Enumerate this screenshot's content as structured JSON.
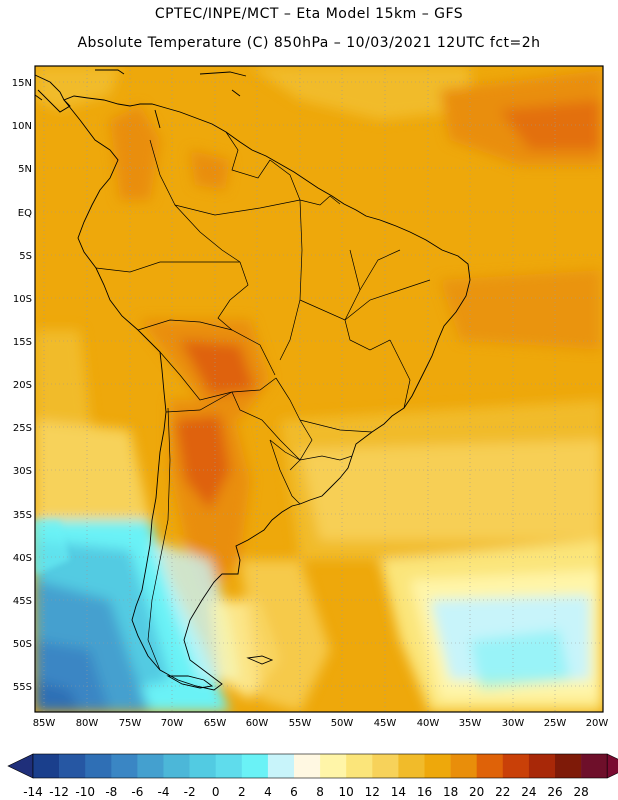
{
  "header": {
    "line1": "CPTEC/INPE/MCT –   Eta Model 15km – GFS",
    "line2": "Absolute Temperature (C) 850hPa – 10/03/2021 12UTC fct=2h"
  },
  "map": {
    "lat_labels": [
      "15N",
      "10N",
      "5N",
      "EQ",
      "5S",
      "10S",
      "15S",
      "20S",
      "25S",
      "30S",
      "35S",
      "40S",
      "45S",
      "50S",
      "55S"
    ],
    "lon_labels": [
      "85W",
      "80W",
      "75W",
      "70W",
      "65W",
      "60W",
      "55W",
      "50W",
      "45W",
      "40W",
      "35W",
      "30W",
      "25W",
      "20W"
    ],
    "region": "South America",
    "variable": "Absolute Temperature (C) 850hPa"
  },
  "colorbar": {
    "labels": [
      "-14",
      "-12",
      "-10",
      "-8",
      "-6",
      "-4",
      "-2",
      "0",
      "2",
      "4",
      "6",
      "8",
      "10",
      "12",
      "14",
      "16",
      "18",
      "20",
      "22",
      "24",
      "26",
      "28"
    ],
    "colors": [
      "#1a3f8c",
      "#2657a3",
      "#2f6fb5",
      "#3a86c4",
      "#44a0cf",
      "#4cb7d8",
      "#52cbe2",
      "#5fdcec",
      "#6af2f6",
      "#c8f4fa",
      "#fff8e2",
      "#fff5a8",
      "#fbe57a",
      "#f7d25a",
      "#f1bb2a",
      "#eea80b",
      "#e98e0a",
      "#df6208",
      "#c94008",
      "#a82808",
      "#7e1a08",
      "#6e0f2a"
    ],
    "min_color": "#1f2f7a",
    "max_color": "#7a0a30"
  }
}
